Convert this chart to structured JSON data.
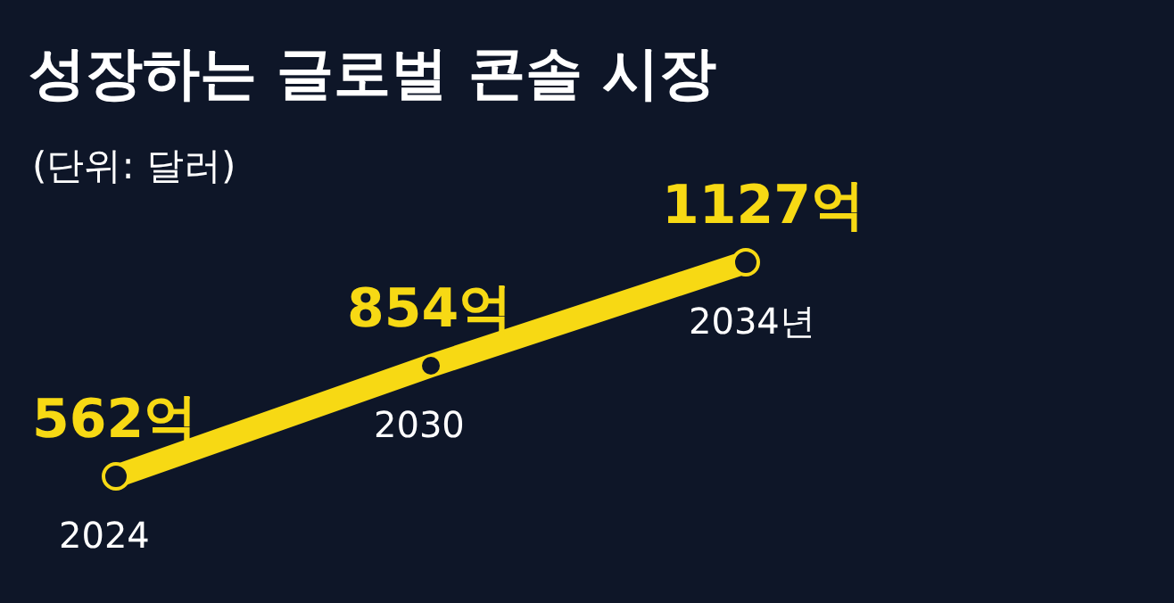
{
  "chart_data": {
    "type": "line",
    "title": "성장하는 글로벌 콘솔 시장",
    "subtitle": "(단위: 달러)",
    "categories": [
      "2024",
      "2030",
      "2034년"
    ],
    "marker": "circle",
    "series": [
      {
        "color": "#f7d914",
        "values": [
          562,
          854,
          1127
        ],
        "value_labels": [
          "562억",
          "854억",
          "1127억"
        ]
      }
    ]
  }
}
